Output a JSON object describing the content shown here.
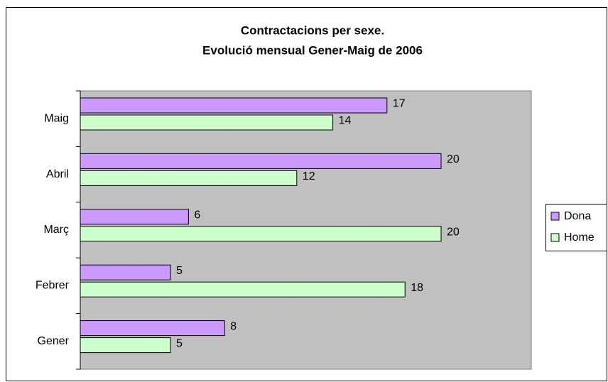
{
  "chart_data": {
    "type": "barh",
    "title": [
      "Contractacions per sexe.",
      "Evolució mensual Gener-Maig de 2006"
    ],
    "categories": [
      "Gener",
      "Febrer",
      "Març",
      "Abril",
      "Maig"
    ],
    "series": [
      {
        "name": "Dona",
        "color": "#cc99ff",
        "values": [
          8,
          5,
          6,
          20,
          17
        ]
      },
      {
        "name": "Home",
        "color": "#ccffcc",
        "values": [
          5,
          18,
          20,
          12,
          14
        ]
      }
    ],
    "xlim": [
      0,
      25
    ],
    "legend": "right"
  }
}
